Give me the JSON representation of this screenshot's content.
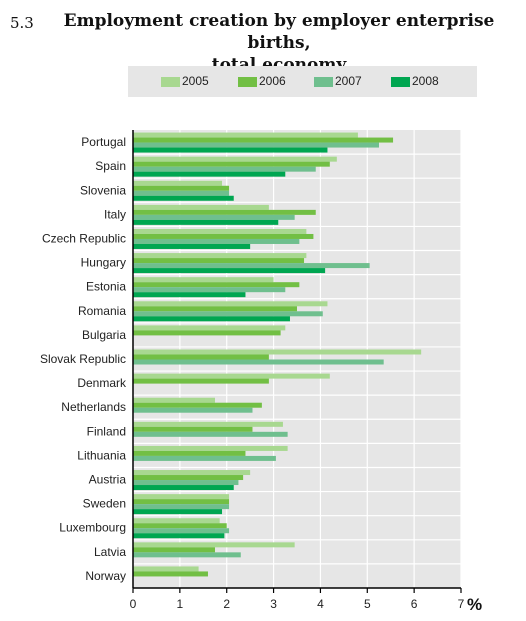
{
  "title": {
    "number": "5.3",
    "line1": "Employment creation by employer enterprise births,",
    "line2": "total economy"
  },
  "colors": {
    "2005": "#a8d890",
    "2006": "#72bf44",
    "2007": "#6fbf8e",
    "2008": "#00a651",
    "plot_bg": "#e6e6e6",
    "grid": "#ffffff"
  },
  "chart_data": {
    "type": "bar",
    "orientation": "horizontal",
    "categories": [
      "Portugal",
      "Spain",
      "Slovenia",
      "Italy",
      "Czech Republic",
      "Hungary",
      "Estonia",
      "Romania",
      "Bulgaria",
      "Slovak Republic",
      "Denmark",
      "Netherlands",
      "Finland",
      "Lithuania",
      "Austria",
      "Sweden",
      "Luxembourg",
      "Latvia",
      "Norway"
    ],
    "series": [
      {
        "name": "2005",
        "values": [
          4.8,
          4.35,
          1.9,
          2.9,
          3.7,
          3.7,
          3.0,
          4.15,
          3.25,
          6.15,
          4.2,
          1.75,
          3.2,
          3.3,
          2.5,
          2.05,
          1.85,
          3.45,
          1.4
        ]
      },
      {
        "name": "2006",
        "values": [
          5.55,
          4.2,
          2.05,
          3.9,
          3.85,
          3.65,
          3.55,
          3.5,
          3.15,
          2.9,
          2.9,
          2.75,
          2.55,
          2.4,
          2.35,
          2.05,
          2.0,
          1.75,
          1.6
        ]
      },
      {
        "name": "2007",
        "values": [
          5.25,
          3.9,
          2.05,
          3.45,
          3.55,
          5.05,
          3.25,
          4.05,
          null,
          5.35,
          null,
          2.55,
          3.3,
          3.05,
          2.25,
          2.05,
          2.05,
          2.3,
          null
        ]
      },
      {
        "name": "2008",
        "values": [
          4.15,
          3.25,
          2.15,
          3.1,
          2.5,
          4.1,
          2.4,
          3.35,
          null,
          null,
          null,
          null,
          null,
          null,
          2.15,
          1.9,
          1.95,
          null,
          null
        ]
      }
    ],
    "xlim": [
      0,
      7
    ],
    "xticks": [
      0,
      1,
      2,
      3,
      4,
      5,
      6,
      7
    ],
    "xlabel": "%",
    "legend_position": "top",
    "grid": true
  }
}
